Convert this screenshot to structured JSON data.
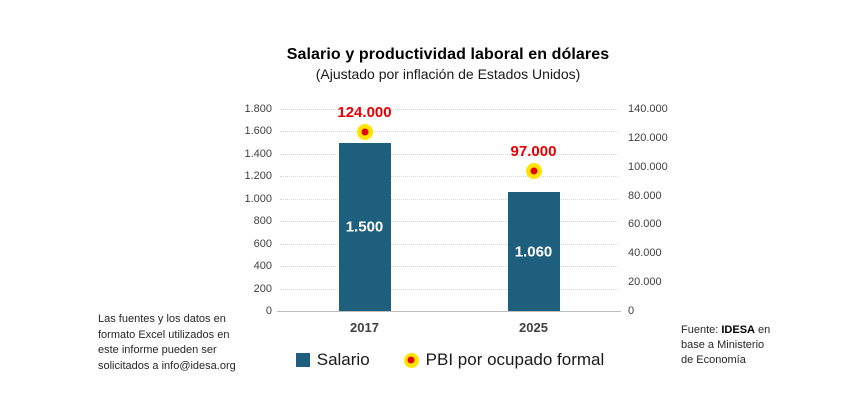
{
  "title": "Salario y productividad laboral en dólares",
  "subtitle": "(Ajustado por inflación de Estados Unidos)",
  "footnote": {
    "lines": [
      "Las fuentes y los datos en",
      "formato Excel utilizados en",
      "este informe pueden ser",
      "solicitados a info@idesa.org"
    ]
  },
  "source": {
    "prefix": "Fuente: ",
    "brand": "IDESA",
    "line1_rest": " en",
    "line2": "base a Ministerio",
    "line3": "de Economía"
  },
  "legend": [
    {
      "label": "Salario",
      "marker": "square",
      "color": "#1f5f7e"
    },
    {
      "label": "PBI por ocupado formal",
      "marker": "dot",
      "fill": "#ffe400",
      "core": "#e60000"
    }
  ],
  "colors": {
    "bar": "#1f5f7e",
    "marker_fill": "#ffe400",
    "marker_core": "#e60000",
    "point_label": "#e60000",
    "axis_text": "#3f3f3f",
    "grid": "#d6d6d6"
  },
  "chart_data": {
    "type": "bar",
    "categories": [
      "2017",
      "2025"
    ],
    "series": [
      {
        "name": "Salario",
        "type": "bar",
        "axis": "left",
        "color": "#1f5f7e",
        "values": [
          1500,
          1060
        ],
        "labels": [
          "1.500",
          "1.060"
        ]
      },
      {
        "name": "PBI por ocupado formal",
        "type": "point",
        "axis": "right",
        "marker_fill": "#ffe400",
        "marker_core": "#e60000",
        "values": [
          124000,
          97000
        ],
        "labels": [
          "124.000",
          "97.000"
        ]
      }
    ],
    "left_axis": {
      "min": 0,
      "max": 1800,
      "step": 200,
      "ticks": [
        "0",
        "200",
        "400",
        "600",
        "800",
        "1.000",
        "1.200",
        "1.400",
        "1.600",
        "1.800"
      ]
    },
    "right_axis": {
      "min": 0,
      "max": 140000,
      "step": 20000,
      "ticks": [
        "0",
        "20.000",
        "40.000",
        "60.000",
        "80.000",
        "100.000",
        "120.000",
        "140.000"
      ]
    },
    "grid": "horizontal-dotted",
    "legend_position": "bottom"
  }
}
